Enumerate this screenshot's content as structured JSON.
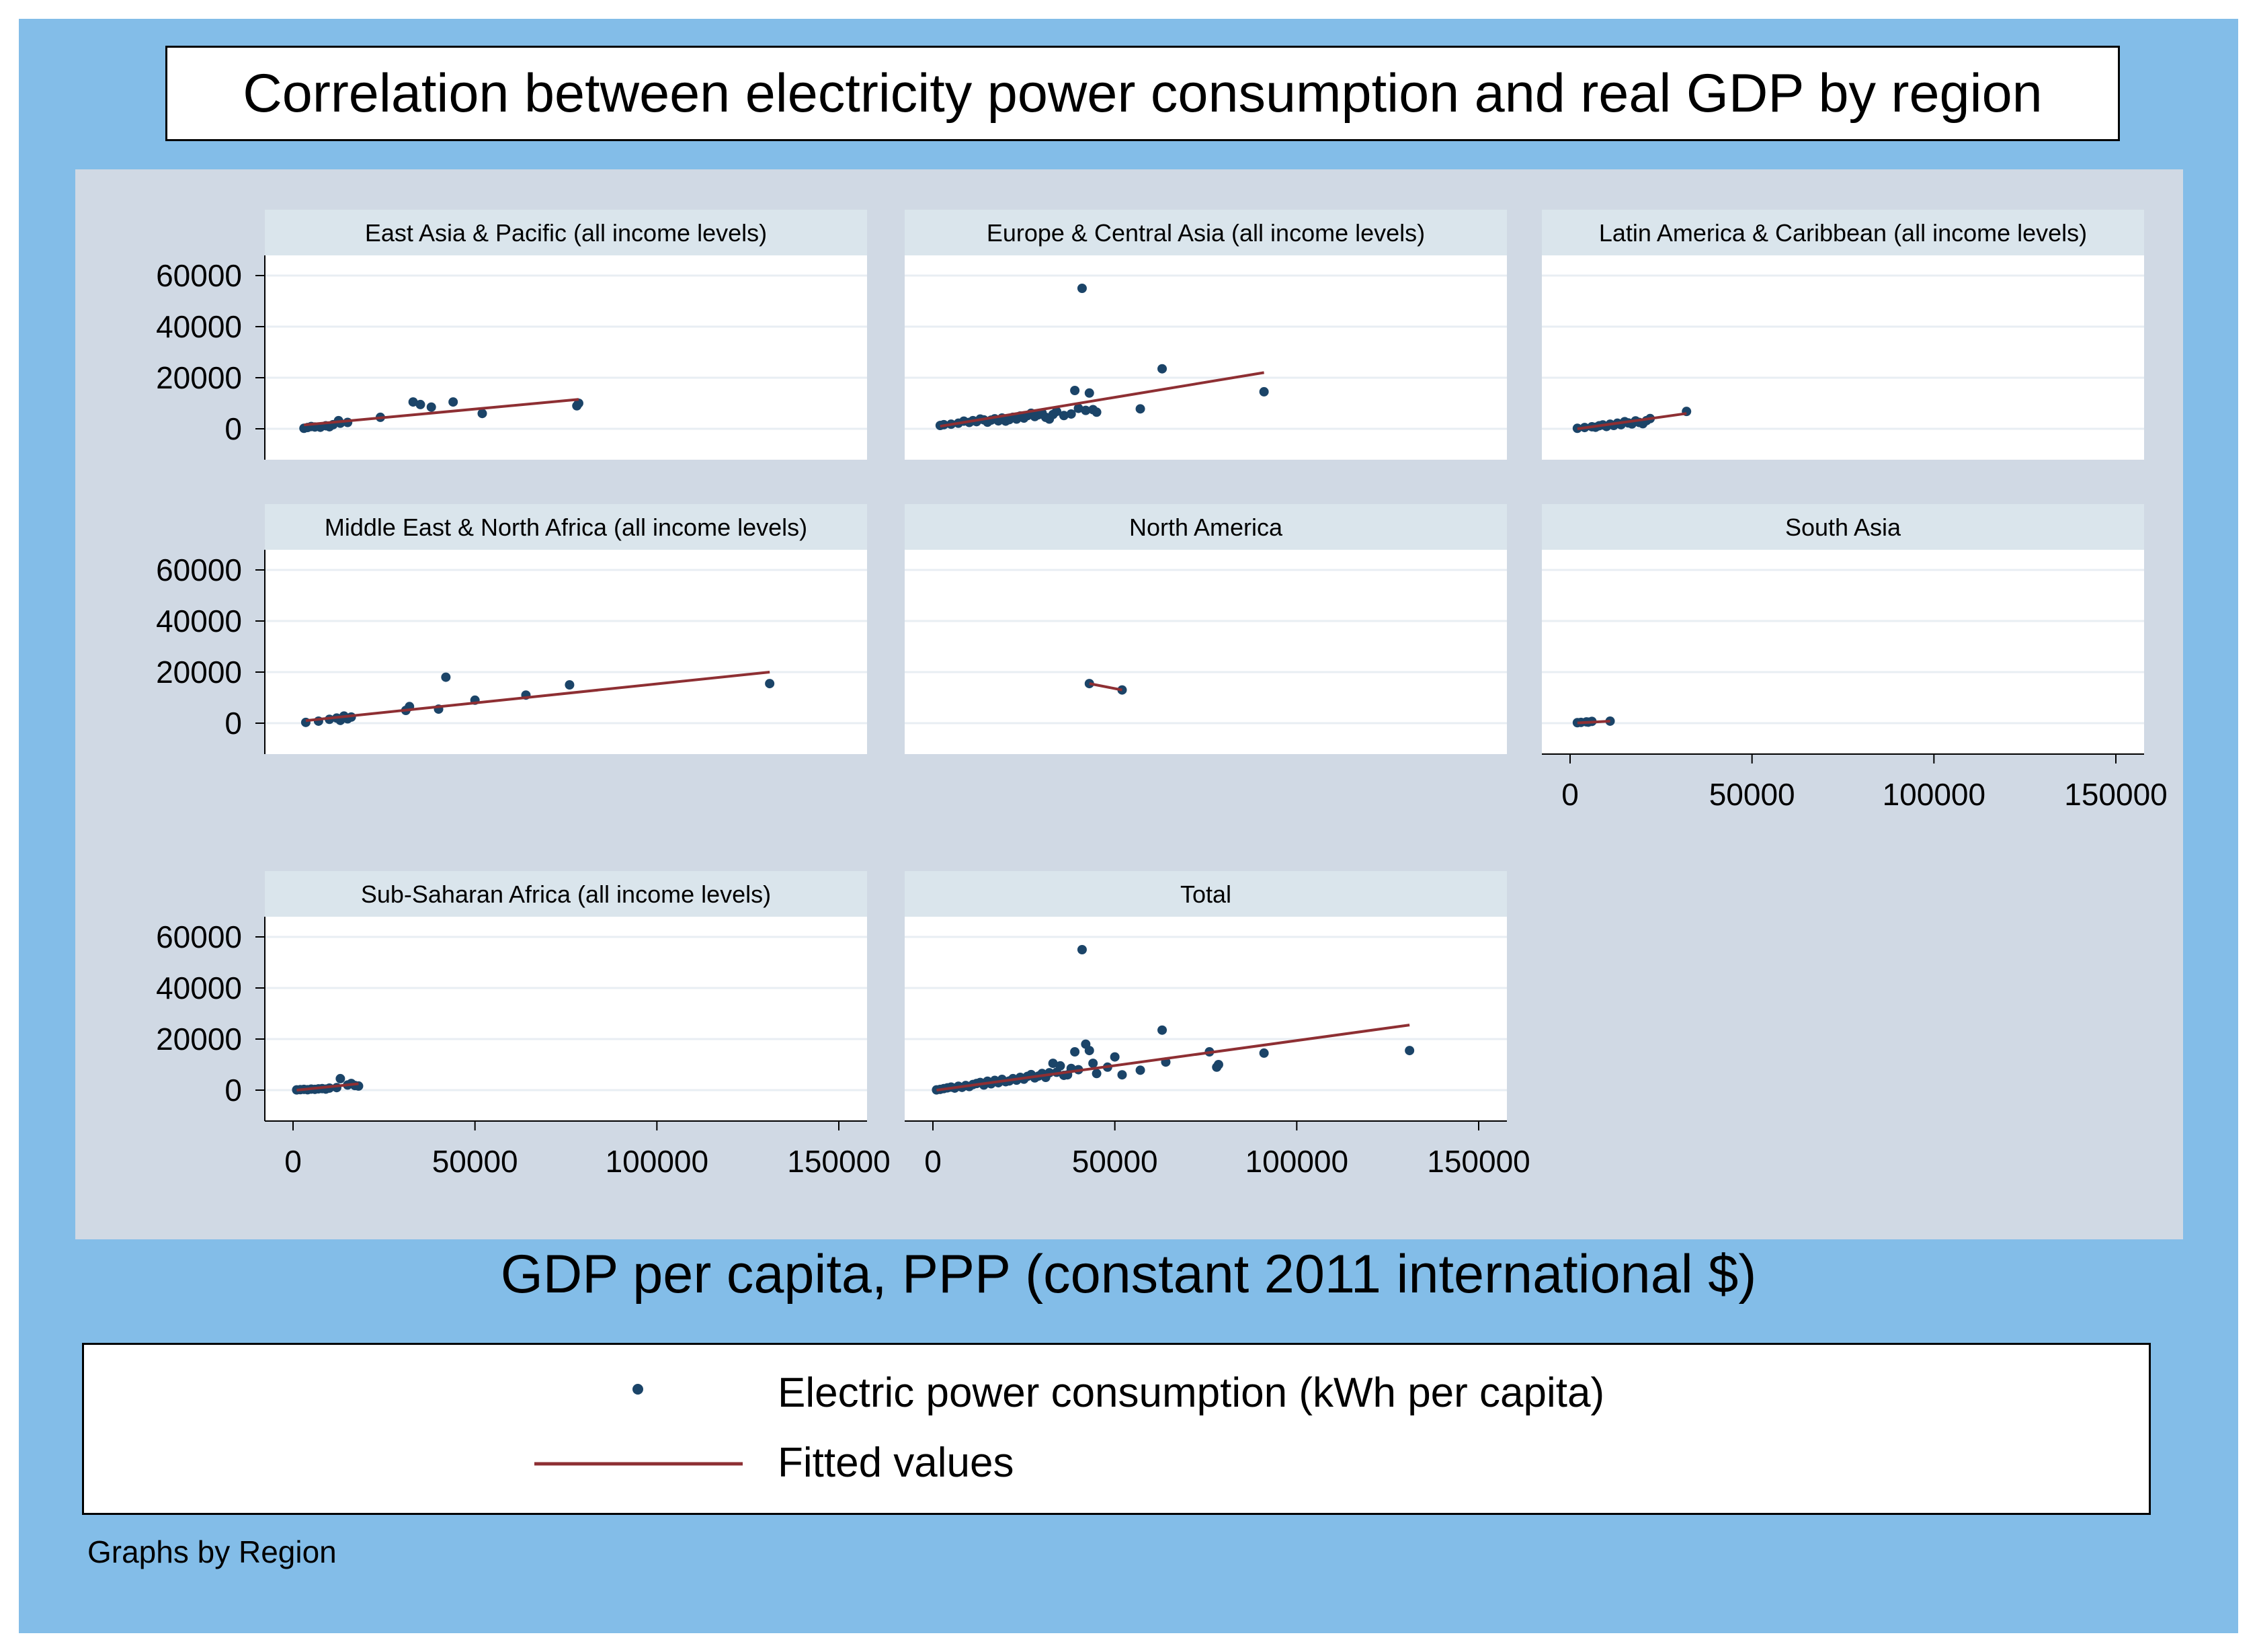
{
  "title": "Correlation between electricity power consumption and real GDP by region",
  "note": "Graphs by Region",
  "colors": {
    "background": "#83bde8",
    "plot_region": "#d0d9e4",
    "panel_header": "#dae5ec",
    "marker": "#1b4468",
    "fit_line": "#8e2f33"
  },
  "legend": {
    "marker_label": "Electric power consumption (kWh per capita)",
    "line_label": "Fitted values"
  },
  "chart_data": {
    "type": "scatter",
    "xlabel": "GDP per capita, PPP (constant 2011 international $)",
    "ylabel": "",
    "xlim": [
      0,
      150000
    ],
    "ylim": [
      0,
      60000
    ],
    "xticks": [
      0,
      50000,
      100000,
      150000
    ],
    "yticks": [
      0,
      20000,
      40000,
      60000
    ],
    "grid": true,
    "legend_position": "bottom",
    "panels": [
      {
        "name": "East Asia & Pacific (all income levels)",
        "points": [
          [
            3000,
            200
          ],
          [
            4000,
            500
          ],
          [
            5000,
            900
          ],
          [
            6000,
            700
          ],
          [
            7500,
            600
          ],
          [
            9000,
            1200
          ],
          [
            10000,
            800
          ],
          [
            11000,
            1600
          ],
          [
            12500,
            3200
          ],
          [
            13000,
            2200
          ],
          [
            15000,
            2500
          ],
          [
            24000,
            4500
          ],
          [
            33000,
            10500
          ],
          [
            35000,
            9500
          ],
          [
            38000,
            8500
          ],
          [
            44000,
            10500
          ],
          [
            52000,
            6000
          ],
          [
            78000,
            9000
          ],
          [
            78500,
            10000
          ]
        ],
        "fit": [
          [
            3000,
            1500
          ],
          [
            78500,
            11500
          ]
        ]
      },
      {
        "name": "Europe & Central Asia (all income levels)",
        "points": [
          [
            2000,
            1300
          ],
          [
            3000,
            1600
          ],
          [
            5000,
            1800
          ],
          [
            7000,
            2200
          ],
          [
            8500,
            3000
          ],
          [
            10000,
            2500
          ],
          [
            11000,
            3200
          ],
          [
            12000,
            2800
          ],
          [
            13000,
            3800
          ],
          [
            14000,
            3500
          ],
          [
            15000,
            2600
          ],
          [
            16000,
            3400
          ],
          [
            17000,
            3900
          ],
          [
            18000,
            3100
          ],
          [
            19000,
            4200
          ],
          [
            20000,
            3000
          ],
          [
            21000,
            3600
          ],
          [
            22000,
            4500
          ],
          [
            23000,
            3800
          ],
          [
            24000,
            5000
          ],
          [
            25000,
            4200
          ],
          [
            26000,
            5200
          ],
          [
            27000,
            6100
          ],
          [
            28000,
            4800
          ],
          [
            29000,
            5500
          ],
          [
            30000,
            6200
          ],
          [
            31000,
            4500
          ],
          [
            32000,
            3800
          ],
          [
            33000,
            5600
          ],
          [
            34000,
            6800
          ],
          [
            36000,
            5200
          ],
          [
            38000,
            5800
          ],
          [
            39000,
            15000
          ],
          [
            40000,
            8000
          ],
          [
            41000,
            55000
          ],
          [
            42000,
            7200
          ],
          [
            43000,
            14000
          ],
          [
            44000,
            7500
          ],
          [
            45000,
            6500
          ],
          [
            57000,
            7800
          ],
          [
            63000,
            23500
          ],
          [
            91000,
            14500
          ]
        ],
        "fit": [
          [
            2000,
            1000
          ],
          [
            91000,
            22000
          ]
        ]
      },
      {
        "name": "Latin America & Caribbean (all income levels)",
        "points": [
          [
            2000,
            200
          ],
          [
            4000,
            500
          ],
          [
            6000,
            800
          ],
          [
            7000,
            600
          ],
          [
            8000,
            1200
          ],
          [
            9000,
            1500
          ],
          [
            10000,
            900
          ],
          [
            11000,
            1800
          ],
          [
            12000,
            1300
          ],
          [
            13000,
            2200
          ],
          [
            14000,
            1600
          ],
          [
            15000,
            2800
          ],
          [
            16000,
            2300
          ],
          [
            17000,
            1900
          ],
          [
            18000,
            3100
          ],
          [
            19000,
            2500
          ],
          [
            20000,
            2000
          ],
          [
            21000,
            3200
          ],
          [
            22000,
            4000
          ],
          [
            32000,
            6800
          ]
        ],
        "fit": [
          [
            2000,
            0
          ],
          [
            32000,
            6000
          ]
        ]
      },
      {
        "name": "Middle East & North Africa (all income levels)",
        "points": [
          [
            3500,
            300
          ],
          [
            7000,
            800
          ],
          [
            10000,
            1500
          ],
          [
            12000,
            2000
          ],
          [
            13000,
            1100
          ],
          [
            14000,
            2800
          ],
          [
            15000,
            1700
          ],
          [
            16000,
            2400
          ],
          [
            31000,
            5000
          ],
          [
            32000,
            6500
          ],
          [
            40000,
            5500
          ],
          [
            42000,
            18000
          ],
          [
            50000,
            9000
          ],
          [
            64000,
            11000
          ],
          [
            76000,
            15000
          ],
          [
            131000,
            15500
          ]
        ],
        "fit": [
          [
            3500,
            1000
          ],
          [
            131000,
            20000
          ]
        ]
      },
      {
        "name": "North America",
        "points": [
          [
            43000,
            15500
          ],
          [
            52000,
            13000
          ]
        ],
        "fit": [
          [
            43000,
            15500
          ],
          [
            52000,
            13000
          ]
        ]
      },
      {
        "name": "South Asia",
        "points": [
          [
            2000,
            200
          ],
          [
            3000,
            300
          ],
          [
            4500,
            500
          ],
          [
            5000,
            400
          ],
          [
            6000,
            700
          ],
          [
            11000,
            800
          ]
        ],
        "fit": [
          [
            2000,
            100
          ],
          [
            11000,
            800
          ]
        ]
      },
      {
        "name": "Sub-Saharan Africa (all income levels)",
        "points": [
          [
            1000,
            100
          ],
          [
            2000,
            200
          ],
          [
            3000,
            300
          ],
          [
            4000,
            150
          ],
          [
            5000,
            400
          ],
          [
            6000,
            300
          ],
          [
            7000,
            500
          ],
          [
            8000,
            600
          ],
          [
            9000,
            400
          ],
          [
            10000,
            800
          ],
          [
            12000,
            1000
          ],
          [
            13000,
            4500
          ],
          [
            15000,
            2000
          ],
          [
            16000,
            2600
          ],
          [
            17000,
            1800
          ],
          [
            18000,
            1600
          ]
        ],
        "fit": [
          [
            1000,
            0
          ],
          [
            18000,
            2500
          ]
        ]
      },
      {
        "name": "Total",
        "points": [
          [
            1000,
            100
          ],
          [
            2000,
            300
          ],
          [
            3000,
            600
          ],
          [
            4000,
            900
          ],
          [
            5000,
            1200
          ],
          [
            6000,
            800
          ],
          [
            7000,
            1500
          ],
          [
            8000,
            1100
          ],
          [
            9000,
            1800
          ],
          [
            10000,
            1400
          ],
          [
            11000,
            2200
          ],
          [
            12000,
            2600
          ],
          [
            13000,
            3000
          ],
          [
            14000,
            2000
          ],
          [
            15000,
            3500
          ],
          [
            16000,
            2500
          ],
          [
            17000,
            3800
          ],
          [
            18000,
            2900
          ],
          [
            19000,
            4200
          ],
          [
            20000,
            3300
          ],
          [
            21000,
            3600
          ],
          [
            22000,
            4500
          ],
          [
            23000,
            3900
          ],
          [
            24000,
            5000
          ],
          [
            25000,
            4300
          ],
          [
            26000,
            5400
          ],
          [
            27000,
            6100
          ],
          [
            28000,
            4800
          ],
          [
            29000,
            5500
          ],
          [
            30000,
            6500
          ],
          [
            31000,
            5000
          ],
          [
            32000,
            6800
          ],
          [
            33000,
            10500
          ],
          [
            34000,
            7000
          ],
          [
            35000,
            9500
          ],
          [
            36000,
            5800
          ],
          [
            37000,
            6000
          ],
          [
            38000,
            8500
          ],
          [
            39000,
            15000
          ],
          [
            40000,
            8000
          ],
          [
            41000,
            55000
          ],
          [
            42000,
            18000
          ],
          [
            43000,
            15500
          ],
          [
            44000,
            10500
          ],
          [
            45000,
            6500
          ],
          [
            48000,
            9000
          ],
          [
            50000,
            13000
          ],
          [
            52000,
            6000
          ],
          [
            57000,
            7800
          ],
          [
            63000,
            23500
          ],
          [
            64000,
            11000
          ],
          [
            76000,
            15000
          ],
          [
            78000,
            9000
          ],
          [
            78500,
            10000
          ],
          [
            91000,
            14500
          ],
          [
            131000,
            15500
          ]
        ],
        "fit": [
          [
            1000,
            0
          ],
          [
            131000,
            25500
          ]
        ]
      }
    ]
  }
}
